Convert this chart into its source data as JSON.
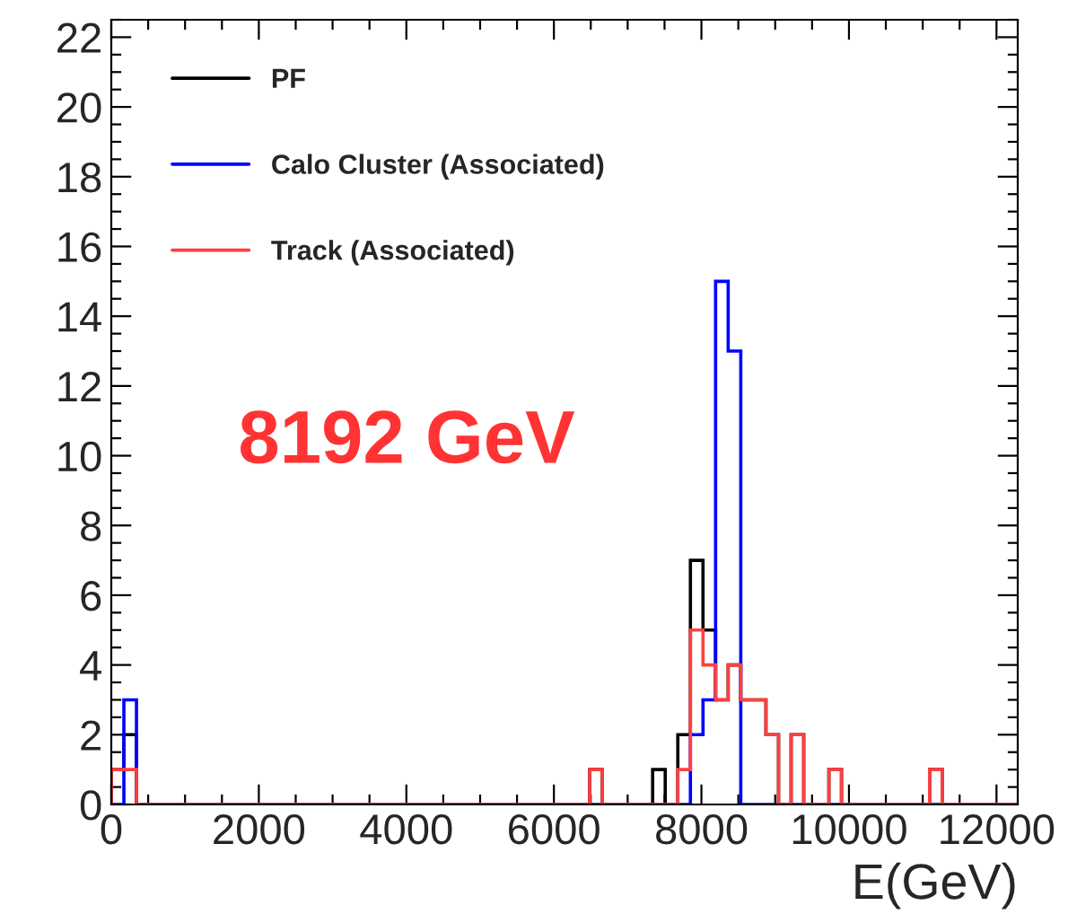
{
  "chart_data": {
    "type": "histogram",
    "xlabel": "E(GeV)",
    "bins": [
      0,
      170.67,
      341.33,
      512,
      682.67,
      853.33,
      1024,
      1194.67,
      1365.33,
      1536,
      1706.67,
      1877.33,
      2048,
      2218.67,
      2389.33,
      2560,
      2730.67,
      2901.33,
      3072,
      3242.67,
      3413.33,
      3584,
      3754.67,
      3925.33,
      4096,
      4266.67,
      4437.33,
      4608,
      4778.67,
      4949.33,
      5120,
      5290.67,
      5461.33,
      5632,
      5802.67,
      5973.33,
      6144,
      6314.67,
      6485.33,
      6656,
      6826.67,
      6997.33,
      7168,
      7338.67,
      7509.33,
      7680,
      7850.67,
      8021.33,
      8192,
      8362.67,
      8533.33,
      8704,
      8874.67,
      9045.33,
      9216,
      9386.67,
      9557.33,
      9728,
      9898.67,
      10069.33,
      10240,
      10410.67,
      10581.33,
      10752,
      10922.67,
      11093.33,
      11264,
      11434.67,
      11605.33,
      11776,
      11946.67,
      12117.33,
      12288
    ],
    "series": [
      {
        "name": "PF",
        "color": "#000000",
        "values": [
          1,
          2,
          0,
          0,
          0,
          0,
          0,
          0,
          0,
          0,
          0,
          0,
          0,
          0,
          0,
          0,
          0,
          0,
          0,
          0,
          0,
          0,
          0,
          0,
          0,
          0,
          0,
          0,
          0,
          0,
          0,
          0,
          0,
          0,
          0,
          0,
          0,
          0,
          1,
          0,
          0,
          0,
          0,
          1,
          0,
          2,
          7,
          5,
          3,
          4,
          3,
          3,
          2,
          0,
          2,
          0,
          0,
          1,
          0,
          0,
          0,
          0,
          0,
          0,
          0,
          1,
          0,
          0,
          0,
          0,
          0,
          0
        ]
      },
      {
        "name": "Calo Cluster (Associated)",
        "color": "#0000ff",
        "values": [
          0,
          3,
          0,
          0,
          0,
          0,
          0,
          0,
          0,
          0,
          0,
          0,
          0,
          0,
          0,
          0,
          0,
          0,
          0,
          0,
          0,
          0,
          0,
          0,
          0,
          0,
          0,
          0,
          0,
          0,
          0,
          0,
          0,
          0,
          0,
          0,
          0,
          0,
          0,
          0,
          0,
          0,
          0,
          0,
          0,
          0,
          2,
          3,
          15,
          13,
          0,
          0,
          0,
          0,
          0,
          0,
          0,
          0,
          0,
          0,
          0,
          0,
          0,
          0,
          0,
          0,
          0,
          0,
          0,
          0,
          0,
          0
        ]
      },
      {
        "name": "Track (Associated)",
        "color": "#ff4040",
        "values": [
          1,
          1,
          0,
          0,
          0,
          0,
          0,
          0,
          0,
          0,
          0,
          0,
          0,
          0,
          0,
          0,
          0,
          0,
          0,
          0,
          0,
          0,
          0,
          0,
          0,
          0,
          0,
          0,
          0,
          0,
          0,
          0,
          0,
          0,
          0,
          0,
          0,
          0,
          1,
          0,
          0,
          0,
          0,
          0,
          0,
          1,
          5,
          4,
          3,
          4,
          3,
          3,
          2,
          0,
          2,
          0,
          0,
          1,
          0,
          0,
          0,
          0,
          0,
          0,
          0,
          1,
          0,
          0,
          0,
          0,
          0,
          0
        ]
      }
    ],
    "annotations": [
      "8192 GeV"
    ],
    "xlim": [
      0,
      12288
    ],
    "ylim": [
      0,
      22.5
    ],
    "xticks": [
      0,
      2000,
      4000,
      6000,
      8000,
      10000,
      12000
    ],
    "yticks": [
      0,
      2,
      4,
      6,
      8,
      10,
      12,
      14,
      16,
      18,
      20,
      22
    ],
    "grid": false,
    "legend": "top left"
  }
}
